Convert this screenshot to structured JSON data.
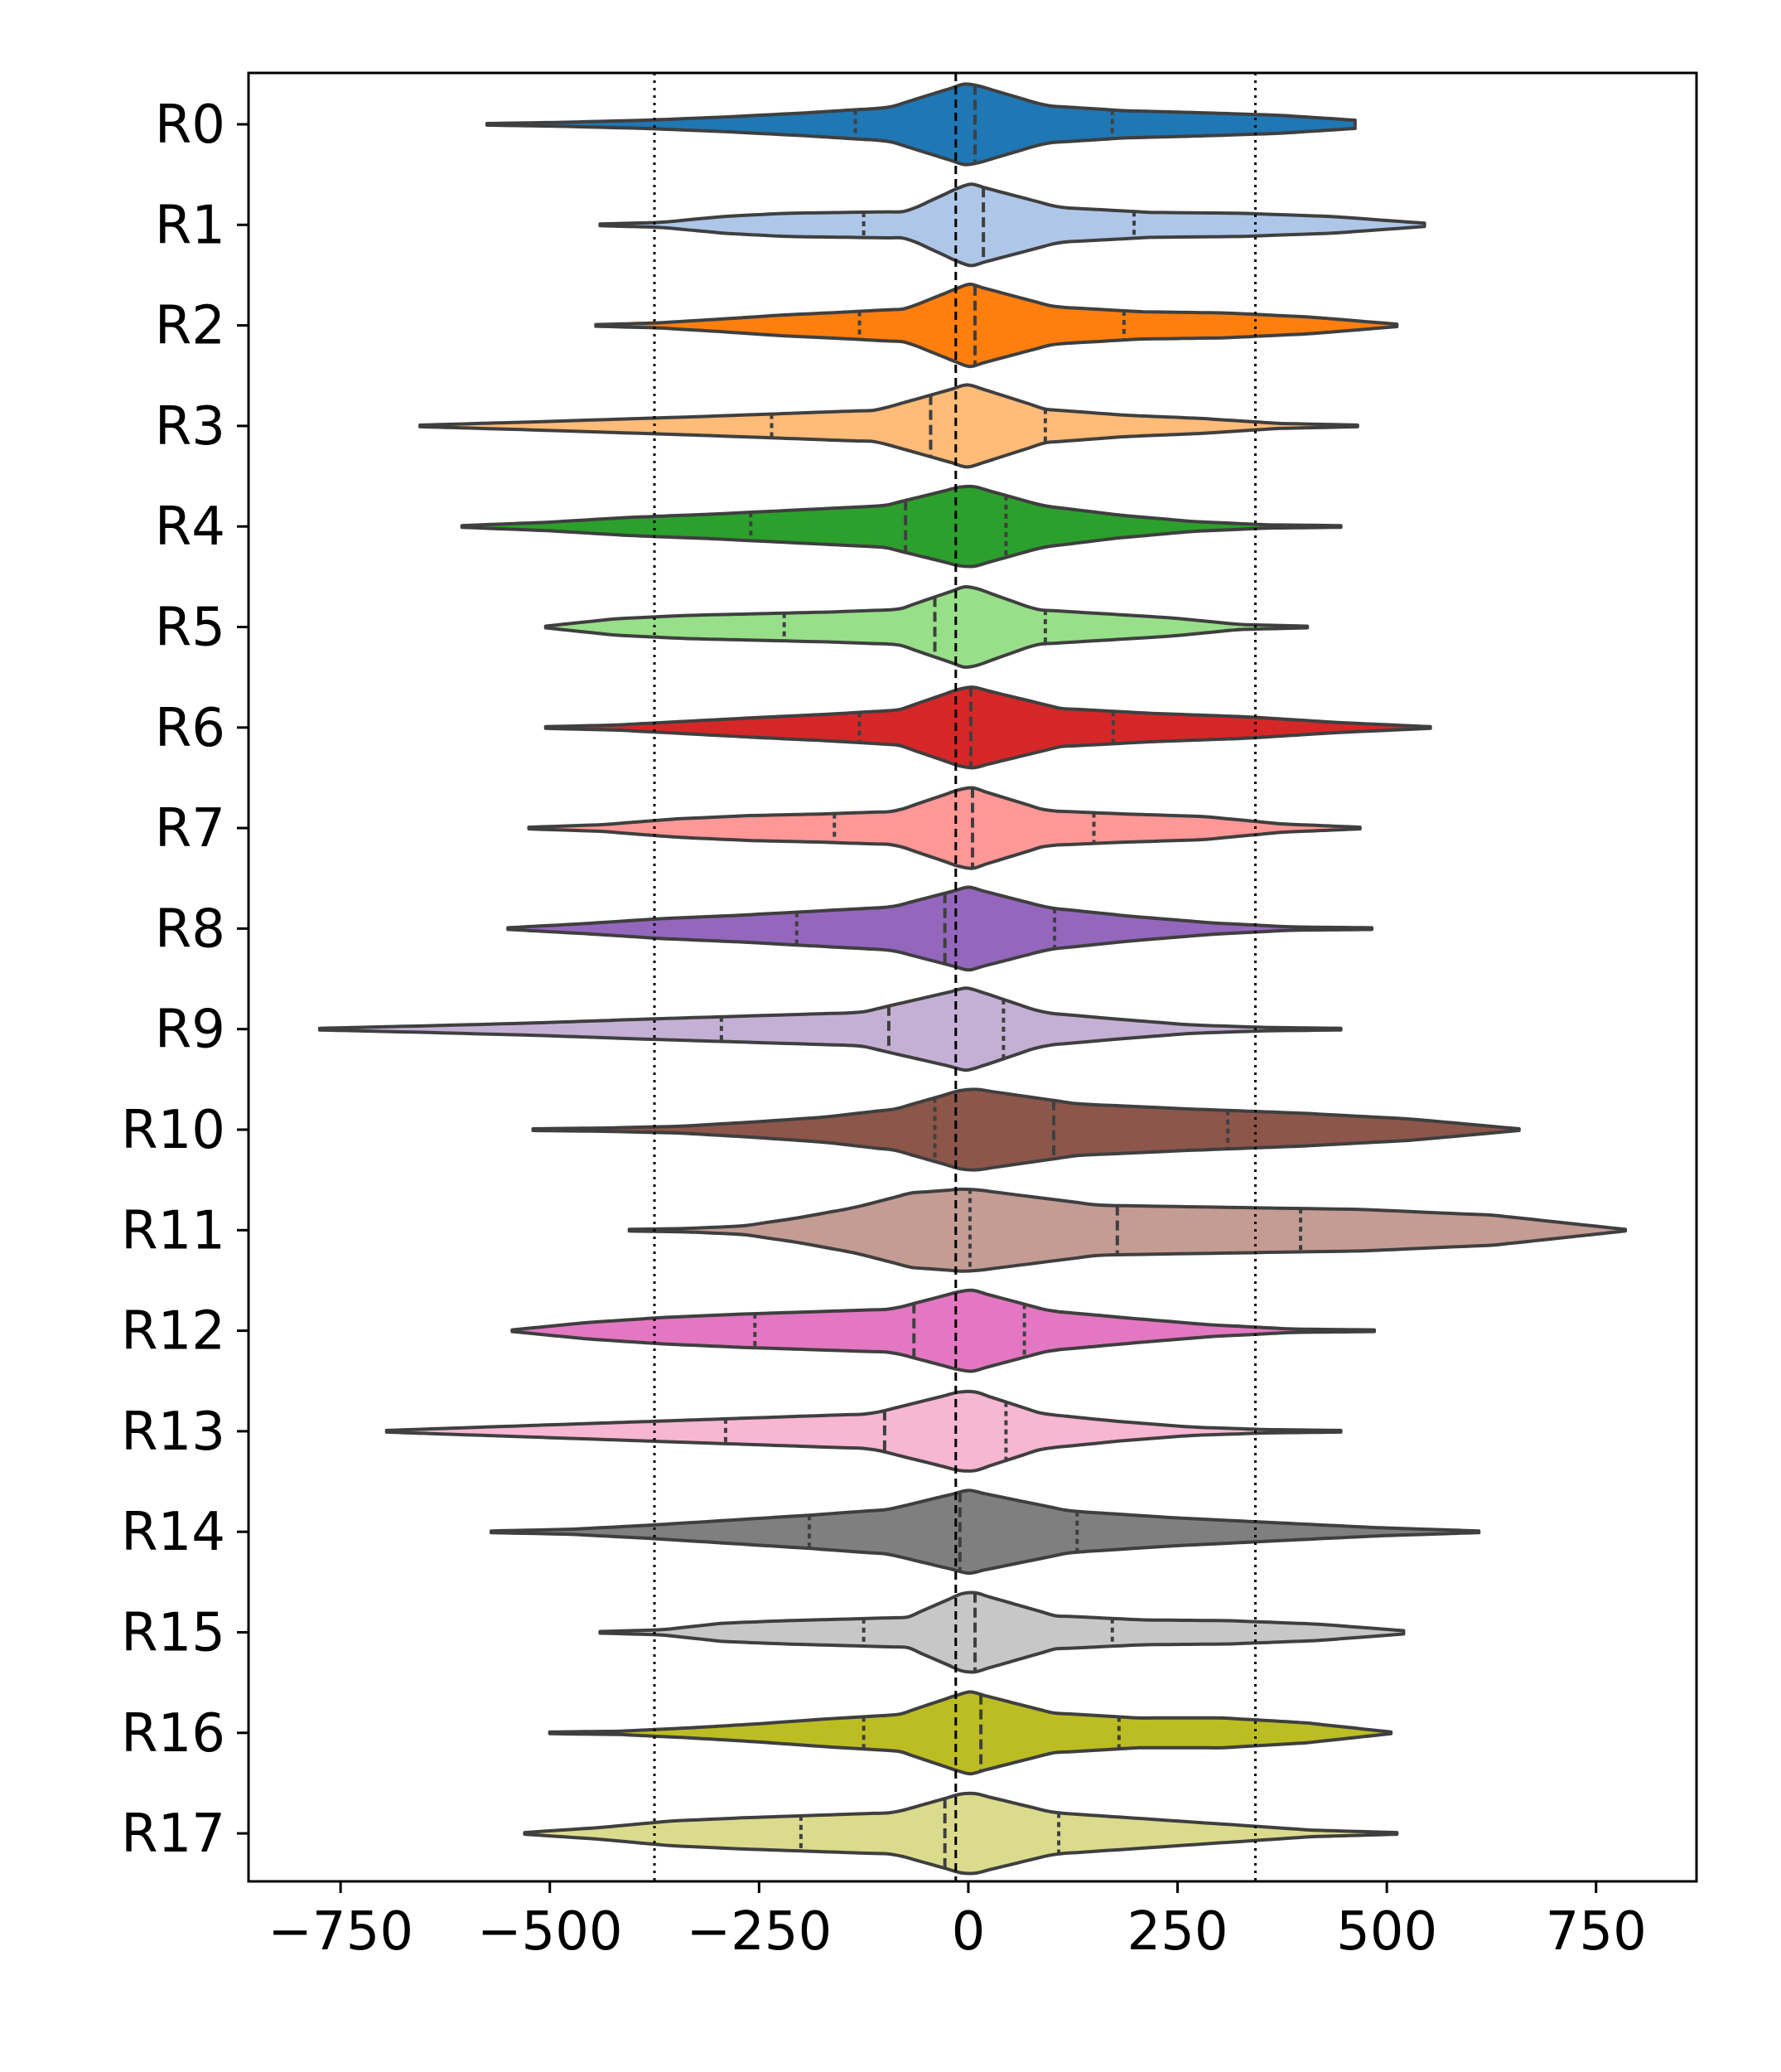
{
  "chart_data": {
    "type": "violin",
    "orientation": "horizontal",
    "title": "",
    "xlabel": "",
    "ylabel": "",
    "xlim": [
      -860,
      870
    ],
    "xticks": [
      -750,
      -500,
      -250,
      0,
      250,
      500,
      750
    ],
    "xtick_labels": [
      "−750",
      "−500",
      "−250",
      "0",
      "250",
      "500",
      "750"
    ],
    "grid": false,
    "legend": "none",
    "reference_lines": [
      {
        "x": -15,
        "style": "dashed"
      },
      {
        "x": -375,
        "style": "dotted"
      },
      {
        "x": 343,
        "style": "dotted"
      }
    ],
    "series": [
      {
        "name": "R0",
        "color": "#1f77b4",
        "min": -575,
        "q1": -135,
        "median": 8,
        "q3": 172,
        "max": 462,
        "peak": 0,
        "widths": [
          0.02,
          0.05,
          0.1,
          0.18,
          0.28,
          0.4,
          1.0,
          0.45,
          0.33,
          0.28,
          0.22,
          0.1
        ]
      },
      {
        "name": "R1",
        "color": "#aec7e8",
        "min": -440,
        "q1": -125,
        "median": 18,
        "q3": 198,
        "max": 545,
        "peak": 0,
        "widths": [
          0.02,
          0.06,
          0.2,
          0.28,
          0.3,
          0.32,
          1.0,
          0.42,
          0.3,
          0.28,
          0.2,
          0.04
        ]
      },
      {
        "name": "R2",
        "color": "#ff7f0e",
        "min": -445,
        "q1": -130,
        "median": 8,
        "q3": 186,
        "max": 512,
        "peak": 0,
        "widths": [
          0.02,
          0.06,
          0.15,
          0.25,
          0.32,
          0.4,
          1.0,
          0.45,
          0.33,
          0.3,
          0.2,
          0.03
        ]
      },
      {
        "name": "R3",
        "color": "#ffbb78",
        "min": -655,
        "q1": -235,
        "median": -45,
        "q3": 92,
        "max": 465,
        "peak": 0,
        "widths": [
          0.02,
          0.08,
          0.15,
          0.22,
          0.3,
          0.38,
          1.0,
          0.4,
          0.26,
          0.18,
          0.06,
          0.02
        ]
      },
      {
        "name": "R4",
        "color": "#2ca02c",
        "min": -605,
        "q1": -260,
        "median": -75,
        "q3": 45,
        "max": 445,
        "peak": 0,
        "widths": [
          0.02,
          0.1,
          0.22,
          0.3,
          0.4,
          0.5,
          1.0,
          0.5,
          0.28,
          0.12,
          0.04,
          0.02
        ]
      },
      {
        "name": "R5",
        "color": "#98df8a",
        "min": -505,
        "q1": -220,
        "median": -40,
        "q3": 92,
        "max": 405,
        "peak": 0,
        "widths": [
          0.02,
          0.2,
          0.28,
          0.32,
          0.36,
          0.42,
          1.0,
          0.42,
          0.32,
          0.22,
          0.06,
          0.02
        ]
      },
      {
        "name": "R6",
        "color": "#d62728",
        "min": -505,
        "q1": -130,
        "median": 3,
        "q3": 173,
        "max": 552,
        "peak": 0,
        "widths": [
          0.02,
          0.06,
          0.15,
          0.24,
          0.32,
          0.42,
          1.0,
          0.46,
          0.34,
          0.26,
          0.12,
          0.02
        ]
      },
      {
        "name": "R7",
        "color": "#ff9896",
        "min": -525,
        "q1": -160,
        "median": 5,
        "q3": 150,
        "max": 468,
        "peak": 0,
        "widths": [
          0.02,
          0.08,
          0.22,
          0.3,
          0.34,
          0.4,
          1.0,
          0.42,
          0.34,
          0.28,
          0.1,
          0.02
        ]
      },
      {
        "name": "R8",
        "color": "#9467bd",
        "min": -550,
        "q1": -205,
        "median": -28,
        "q3": 103,
        "max": 482,
        "peak": 0,
        "widths": [
          0.02,
          0.12,
          0.24,
          0.32,
          0.42,
          0.52,
          1.0,
          0.5,
          0.3,
          0.14,
          0.04,
          0.02
        ]
      },
      {
        "name": "R9",
        "color": "#c5b0d5",
        "min": -775,
        "q1": -295,
        "median": -95,
        "q3": 42,
        "max": 445,
        "peak": 0,
        "widths": [
          0.02,
          0.08,
          0.15,
          0.24,
          0.32,
          0.4,
          1.0,
          0.4,
          0.24,
          0.1,
          0.04,
          0.02
        ]
      },
      {
        "name": "R10",
        "color": "#8c564b",
        "min": -520,
        "q1": -40,
        "median": 102,
        "q3": 310,
        "max": 658,
        "peak": 0,
        "widths": [
          0.02,
          0.04,
          0.08,
          0.18,
          0.3,
          0.5,
          1.0,
          0.62,
          0.5,
          0.4,
          0.26,
          0.02
        ]
      },
      {
        "name": "R11",
        "color": "#c49c94",
        "min": -405,
        "q1": 2,
        "median": 178,
        "q3": 397,
        "max": 785,
        "peak": 0,
        "widths": [
          0.02,
          0.04,
          0.1,
          0.3,
          0.55,
          0.9,
          1.0,
          0.6,
          0.55,
          0.5,
          0.36,
          0.02
        ]
      },
      {
        "name": "R12",
        "color": "#e377c2",
        "min": -545,
        "q1": -255,
        "median": -65,
        "q3": 67,
        "max": 485,
        "peak": 0,
        "widths": [
          0.02,
          0.2,
          0.32,
          0.4,
          0.46,
          0.52,
          1.0,
          0.48,
          0.3,
          0.14,
          0.04,
          0.02
        ]
      },
      {
        "name": "R13",
        "color": "#f7b6d2",
        "min": -695,
        "q1": -290,
        "median": -100,
        "q3": 45,
        "max": 445,
        "peak": 0,
        "widths": [
          0.02,
          0.1,
          0.18,
          0.26,
          0.34,
          0.42,
          1.0,
          0.42,
          0.24,
          0.1,
          0.04,
          0.02
        ]
      },
      {
        "name": "R14",
        "color": "#7f7f7f",
        "min": -570,
        "q1": -190,
        "median": -10,
        "q3": 130,
        "max": 610,
        "peak": 0,
        "widths": [
          0.02,
          0.06,
          0.16,
          0.28,
          0.4,
          0.54,
          1.0,
          0.5,
          0.34,
          0.22,
          0.1,
          0.02
        ]
      },
      {
        "name": "R15",
        "color": "#c7c7c7",
        "min": -440,
        "q1": -125,
        "median": 8,
        "q3": 172,
        "max": 520,
        "peak": 0,
        "widths": [
          0.02,
          0.06,
          0.22,
          0.28,
          0.32,
          0.36,
          1.0,
          0.4,
          0.3,
          0.28,
          0.2,
          0.04
        ]
      },
      {
        "name": "R16",
        "color": "#bcbd22",
        "min": -500,
        "q1": -125,
        "median": 15,
        "q3": 180,
        "max": 505,
        "peak": 0,
        "widths": [
          0.02,
          0.04,
          0.12,
          0.22,
          0.34,
          0.44,
          1.0,
          0.48,
          0.36,
          0.36,
          0.24,
          0.02
        ]
      },
      {
        "name": "R17",
        "color": "#dbdb8d",
        "min": -530,
        "q1": -200,
        "median": -28,
        "q3": 108,
        "max": 512,
        "peak": 0,
        "widths": [
          0.02,
          0.14,
          0.3,
          0.38,
          0.44,
          0.5,
          1.0,
          0.5,
          0.36,
          0.22,
          0.08,
          0.02
        ]
      }
    ]
  }
}
